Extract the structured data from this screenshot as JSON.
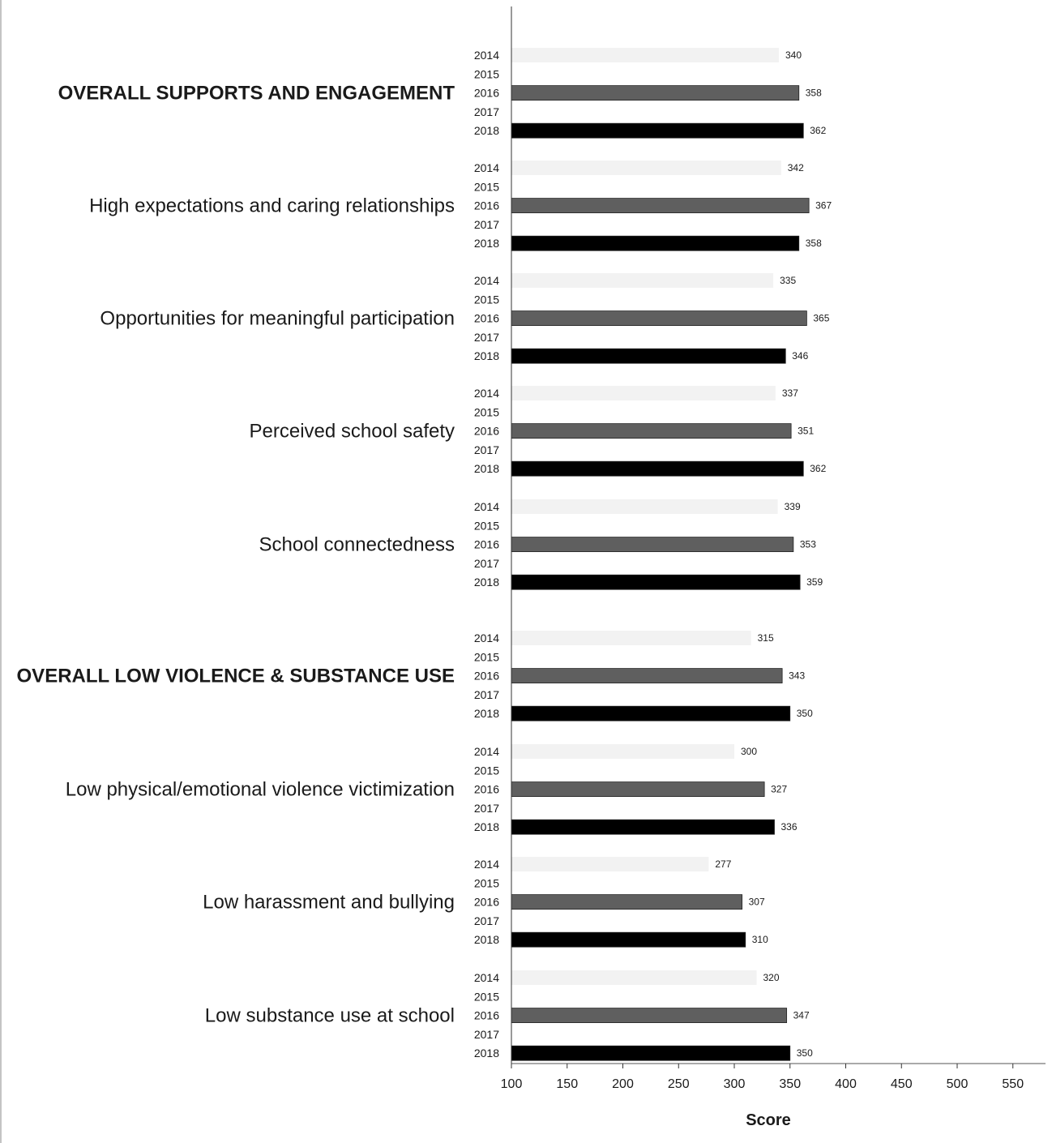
{
  "chart_data": {
    "type": "bar",
    "orientation": "horizontal",
    "title": "",
    "xlabel": "Score",
    "ylabel": "",
    "xlim": [
      100,
      550
    ],
    "xticks": [
      100,
      150,
      200,
      250,
      300,
      350,
      400,
      450,
      500,
      550
    ],
    "years": [
      "2014",
      "2015",
      "2016",
      "2017",
      "2018"
    ],
    "year_colors": {
      "2014": "#f2f2f2",
      "2015": "#ffffff",
      "2016": "#5f5f5f",
      "2017": "#ffffff",
      "2018": "#000000"
    },
    "categories": [
      {
        "label": "OVERALL SUPPORTS AND ENGAGEMENT",
        "bold": true,
        "values": {
          "2014": 340,
          "2016": 358,
          "2018": 362
        }
      },
      {
        "label": "High expectations and caring relationships",
        "bold": false,
        "values": {
          "2014": 342,
          "2016": 367,
          "2018": 358
        }
      },
      {
        "label": "Opportunities for meaningful participation",
        "bold": false,
        "values": {
          "2014": 335,
          "2016": 365,
          "2018": 346
        }
      },
      {
        "label": "Perceived school safety",
        "bold": false,
        "values": {
          "2014": 337,
          "2016": 351,
          "2018": 362
        }
      },
      {
        "label": "School connectedness",
        "bold": false,
        "values": {
          "2014": 339,
          "2016": 353,
          "2018": 359
        }
      },
      {
        "label": "OVERALL LOW VIOLENCE & SUBSTANCE USE",
        "bold": true,
        "values": {
          "2014": 315,
          "2016": 343,
          "2018": 350
        }
      },
      {
        "label": "Low physical/emotional violence victimization",
        "bold": false,
        "values": {
          "2014": 300,
          "2016": 327,
          "2018": 336
        }
      },
      {
        "label": "Low harassment and bullying",
        "bold": false,
        "values": {
          "2014": 277,
          "2016": 307,
          "2018": 310
        }
      },
      {
        "label": "Low substance use at school",
        "bold": false,
        "values": {
          "2014": 320,
          "2016": 347,
          "2018": 350
        }
      }
    ],
    "grid": false,
    "legend": "none"
  }
}
